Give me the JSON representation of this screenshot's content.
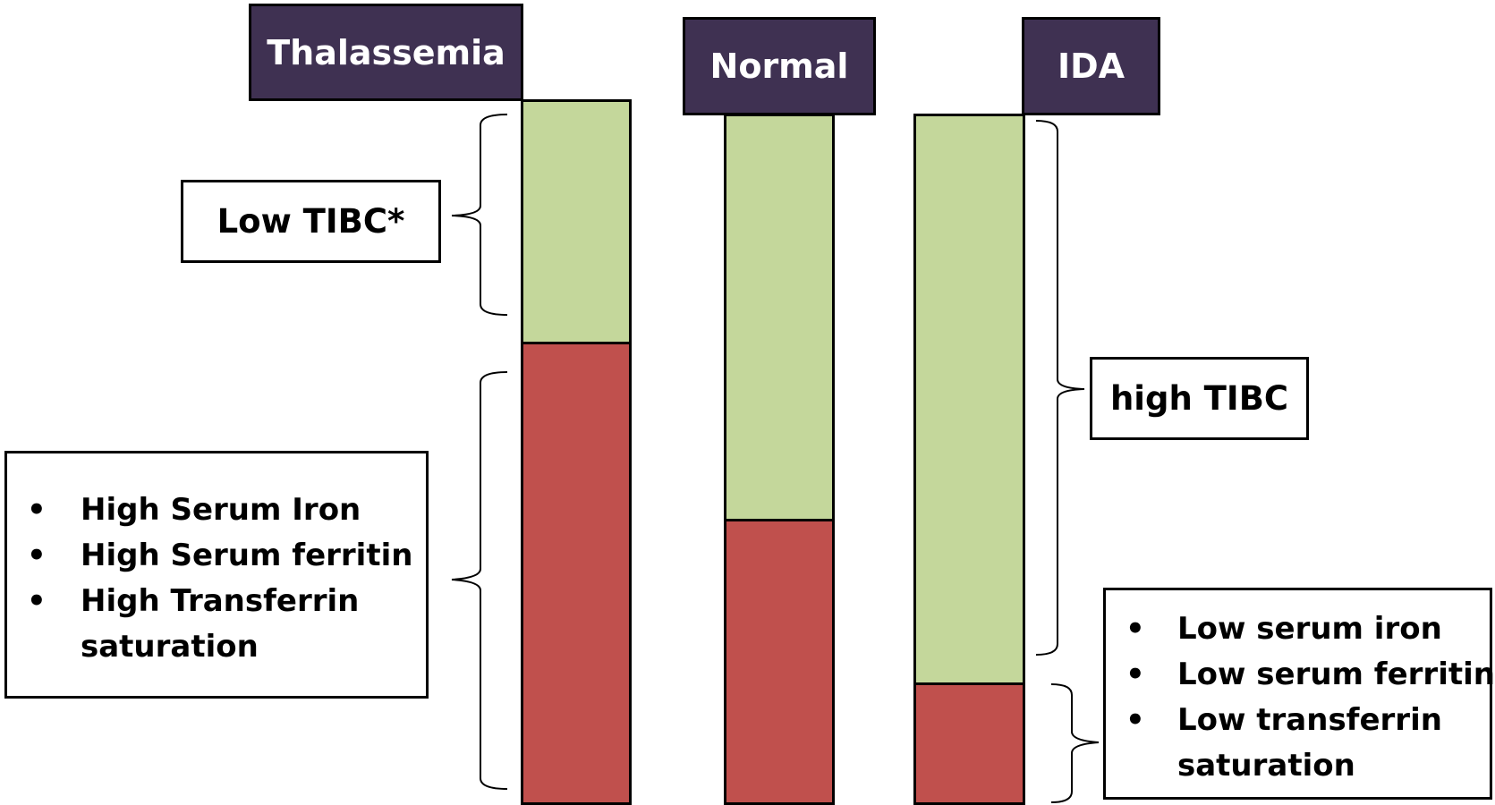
{
  "columns": {
    "thalassemia": {
      "header": "Thalassemia"
    },
    "normal": {
      "header": "Normal"
    },
    "ida": {
      "header": "IDA"
    }
  },
  "annotations": {
    "thalassemia_tibc": "Low TIBC*",
    "ida_tibc": "high TIBC",
    "thalassemia_iron": {
      "bullet": "•",
      "items": [
        "High Serum Iron",
        "High Serum ferritin",
        "High Transferrin",
        "saturation"
      ]
    },
    "ida_iron": {
      "bullet": "•",
      "items": [
        "Low serum iron",
        "Low serum ferritin",
        "Low transferrin",
        "saturation"
      ]
    }
  },
  "colors": {
    "header_bg": "#3f3152",
    "tibc_segment": "#c4d79b",
    "iron_segment": "#c0504d"
  }
}
